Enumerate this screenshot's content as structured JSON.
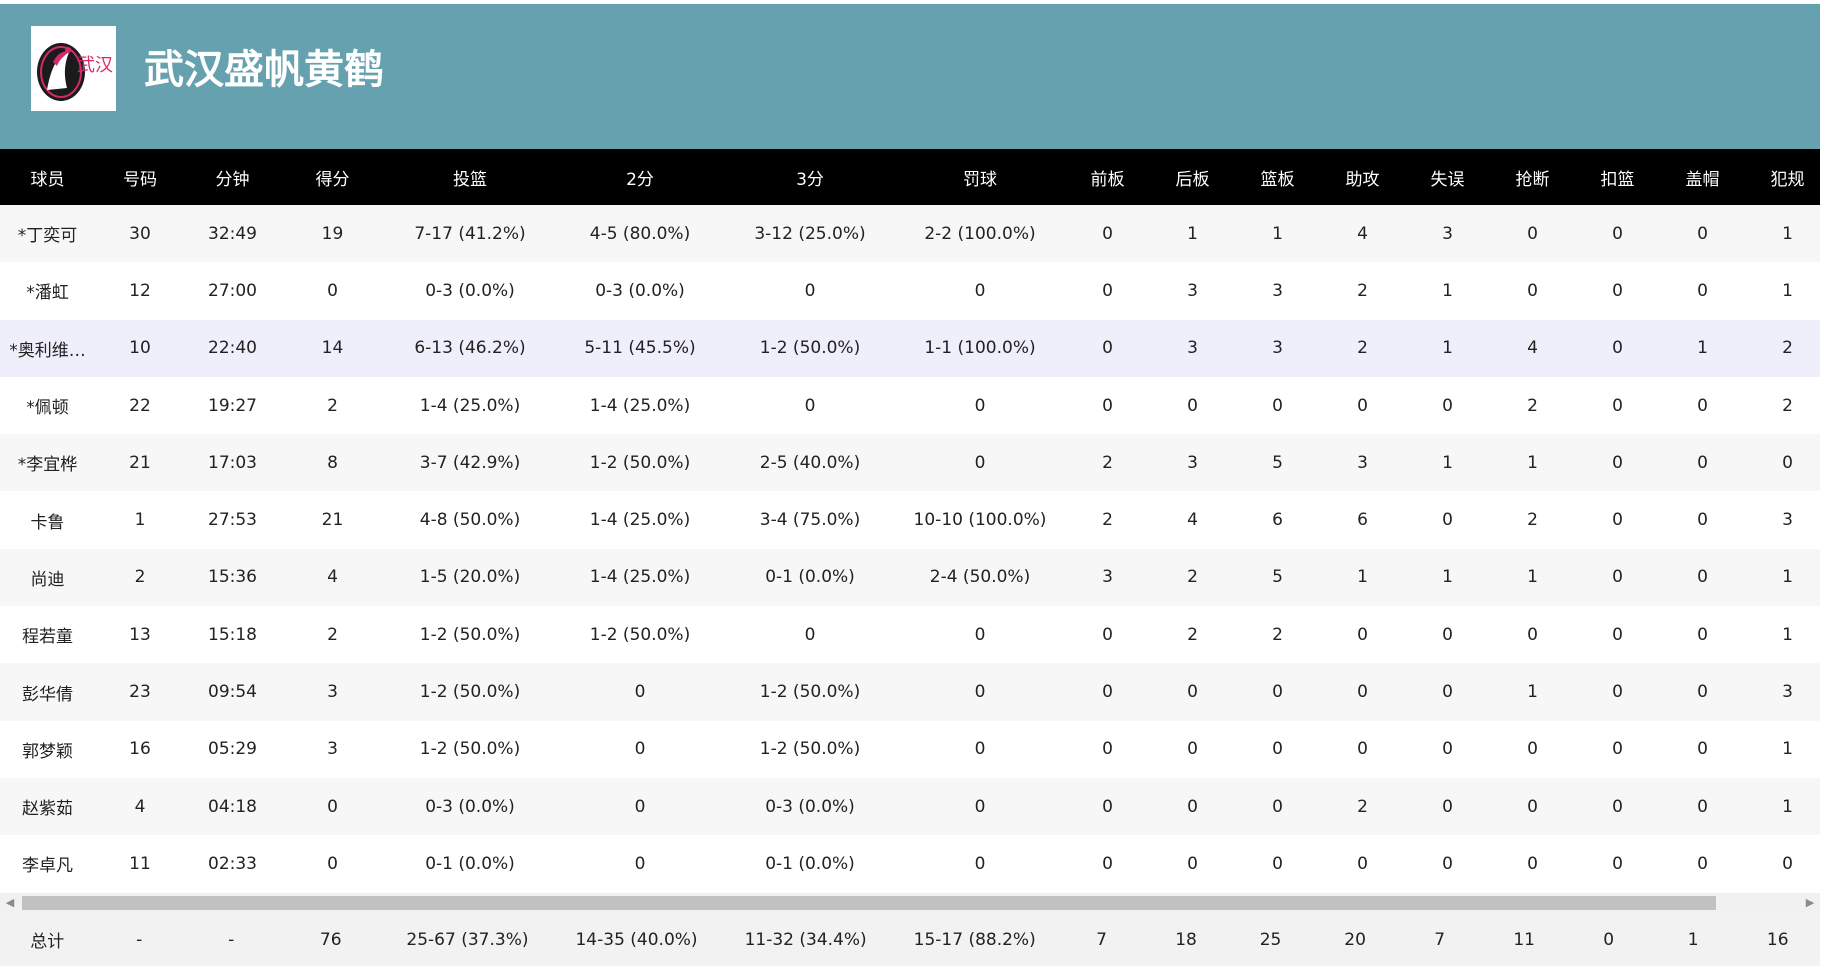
{
  "team": {
    "name": "武汉盛帆黄鹤",
    "logo_text": "武汉",
    "colors": {
      "header_bg": "#66a1af",
      "table_header_bg": "#000000",
      "highlight_row": "#efeefb",
      "logo_accent": "#d6296a"
    }
  },
  "columns": [
    "球员",
    "号码",
    "分钟",
    "得分",
    "投篮",
    "2分",
    "3分",
    "罚球",
    "前板",
    "后板",
    "篮板",
    "助攻",
    "失误",
    "抢断",
    "扣篮",
    "盖帽",
    "犯规"
  ],
  "players": [
    [
      "*丁奕可",
      "30",
      "32:49",
      "19",
      "7-17 (41.2%)",
      "4-5 (80.0%)",
      "3-12 (25.0%)",
      "2-2 (100.0%)",
      "0",
      "1",
      "1",
      "4",
      "3",
      "0",
      "0",
      "0",
      "1"
    ],
    [
      "*潘虹",
      "12",
      "27:00",
      "0",
      "0-3 (0.0%)",
      "0-3 (0.0%)",
      "0",
      "0",
      "0",
      "3",
      "3",
      "2",
      "1",
      "0",
      "0",
      "0",
      "1"
    ],
    [
      "*奥利维…",
      "10",
      "22:40",
      "14",
      "6-13 (46.2%)",
      "5-11 (45.5%)",
      "1-2 (50.0%)",
      "1-1 (100.0%)",
      "0",
      "3",
      "3",
      "2",
      "1",
      "4",
      "0",
      "1",
      "2"
    ],
    [
      "*佩顿",
      "22",
      "19:27",
      "2",
      "1-4 (25.0%)",
      "1-4 (25.0%)",
      "0",
      "0",
      "0",
      "0",
      "0",
      "0",
      "0",
      "2",
      "0",
      "0",
      "2"
    ],
    [
      "*李宜桦",
      "21",
      "17:03",
      "8",
      "3-7 (42.9%)",
      "1-2 (50.0%)",
      "2-5 (40.0%)",
      "0",
      "2",
      "3",
      "5",
      "3",
      "1",
      "1",
      "0",
      "0",
      "0"
    ],
    [
      "卡鲁",
      "1",
      "27:53",
      "21",
      "4-8 (50.0%)",
      "1-4 (25.0%)",
      "3-4 (75.0%)",
      "10-10 (100.0%)",
      "2",
      "4",
      "6",
      "6",
      "0",
      "2",
      "0",
      "0",
      "3"
    ],
    [
      "尚迪",
      "2",
      "15:36",
      "4",
      "1-5 (20.0%)",
      "1-4 (25.0%)",
      "0-1 (0.0%)",
      "2-4 (50.0%)",
      "3",
      "2",
      "5",
      "1",
      "1",
      "1",
      "0",
      "0",
      "1"
    ],
    [
      "程若童",
      "13",
      "15:18",
      "2",
      "1-2 (50.0%)",
      "1-2 (50.0%)",
      "0",
      "0",
      "0",
      "2",
      "2",
      "0",
      "0",
      "0",
      "0",
      "0",
      "1"
    ],
    [
      "彭华倩",
      "23",
      "09:54",
      "3",
      "1-2 (50.0%)",
      "0",
      "1-2 (50.0%)",
      "0",
      "0",
      "0",
      "0",
      "0",
      "0",
      "1",
      "0",
      "0",
      "3"
    ],
    [
      "郭梦颖",
      "16",
      "05:29",
      "3",
      "1-2 (50.0%)",
      "0",
      "1-2 (50.0%)",
      "0",
      "0",
      "0",
      "0",
      "0",
      "0",
      "0",
      "0",
      "0",
      "1"
    ],
    [
      "赵紫茹",
      "4",
      "04:18",
      "0",
      "0-3 (0.0%)",
      "0",
      "0-3 (0.0%)",
      "0",
      "0",
      "0",
      "0",
      "2",
      "0",
      "0",
      "0",
      "0",
      "1"
    ],
    [
      "李卓凡",
      "11",
      "02:33",
      "0",
      "0-1 (0.0%)",
      "0",
      "0-1 (0.0%)",
      "0",
      "0",
      "0",
      "0",
      "0",
      "0",
      "0",
      "0",
      "0",
      "0"
    ]
  ],
  "highlighted_row": 2,
  "totals": [
    "总计",
    "-",
    "-",
    "76",
    "25-67 (37.3%)",
    "14-35 (40.0%)",
    "11-32 (34.4%)",
    "15-17 (88.2%)",
    "7",
    "18",
    "25",
    "20",
    "7",
    "11",
    "0",
    "1",
    "16"
  ],
  "scrollbar": {
    "left_arrow": "◀",
    "right_arrow": "▶"
  }
}
